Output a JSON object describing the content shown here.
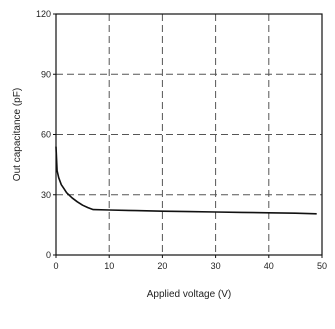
{
  "chart_data": {
    "type": "line",
    "title": "",
    "xlabel": "Applied voltage (V)",
    "ylabel": "Out capacitance (pF)",
    "xlim": [
      0,
      50
    ],
    "ylim": [
      0,
      120
    ],
    "x_ticks": [
      "0",
      "10",
      "20",
      "30",
      "40",
      "50"
    ],
    "y_ticks": [
      "0",
      "30",
      "60",
      "90",
      "120"
    ],
    "grid": true,
    "grid_style": "dashed",
    "colors": {
      "line": "#111111",
      "grid": "#555555",
      "frame": "#111111"
    },
    "series": [
      {
        "x": [
          0,
          0.2,
          0.5,
          1,
          1.5,
          2,
          3,
          4,
          5,
          6,
          7,
          10,
          15,
          20,
          25,
          30,
          35,
          40,
          45,
          49
        ],
        "y": [
          54,
          42,
          38.5,
          35,
          33,
          31,
          28.5,
          26.5,
          24.8,
          23.6,
          22.6,
          22.4,
          22.1,
          21.8,
          21.6,
          21.4,
          21.2,
          21,
          20.8,
          20.5
        ]
      }
    ]
  }
}
